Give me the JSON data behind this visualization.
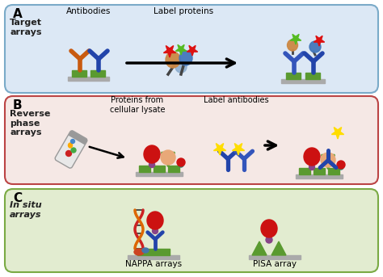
{
  "panel_A": {
    "label": "A",
    "title": "Target\narrays",
    "bg_color": "#dce8f5",
    "border_color": "#7aaac8",
    "text_antibodies": "Antibodies",
    "text_label_proteins": "Label proteins"
  },
  "panel_B": {
    "label": "B",
    "title": "Reverse\nphase\narrays",
    "bg_color": "#f5e8e5",
    "border_color": "#bb4444",
    "text_proteins": "Proteins from\ncellular lysate",
    "text_label_antibodies": "Label antibodies"
  },
  "panel_C": {
    "label": "C",
    "title": "In situ\narrays",
    "bg_color": "#e2ecd0",
    "border_color": "#7aaa44",
    "text_nappa": "NAPPA arrays",
    "text_pisa": "PISA array"
  },
  "colors": {
    "orange_ab": "#c85a10",
    "blue_ab": "#2244aa",
    "mid_blue_ab": "#3355bb",
    "green_base": "#5a9a30",
    "dark_green_base": "#4a8a20",
    "gray_chip": "#aaaaaa",
    "red_protein": "#cc1111",
    "peach_protein": "#e8a878",
    "star_red": "#dd1111",
    "star_green": "#55bb22",
    "star_yellow": "#ffdd00",
    "star_orange": "#ff7700",
    "dna_red": "#cc2222",
    "dna_orange": "#dd6600",
    "dna_black": "#333333",
    "purple_small": "#884488",
    "teal_small": "#228877"
  }
}
